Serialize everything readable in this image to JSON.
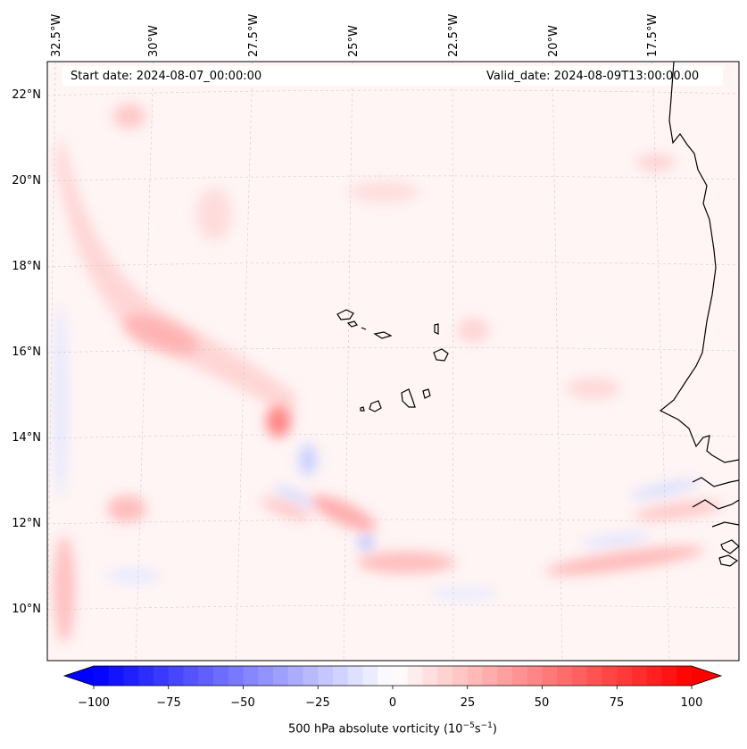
{
  "header": {
    "start_date": "Start date: 2024-08-07_00:00:00",
    "valid_date": "Valid_date: 2024-08-09T13:00:00.00"
  },
  "lon_labels": [
    "32.5°W",
    "30°W",
    "27.5°W",
    "25°W",
    "22.5°W",
    "20°W",
    "17.5°W"
  ],
  "lat_labels": [
    "22°N",
    "20°N",
    "18°N",
    "16°N",
    "14°N",
    "12°N",
    "10°N"
  ],
  "colorbar": {
    "ticks": [
      "−100",
      "−75",
      "−50",
      "−25",
      "0",
      "25",
      "50",
      "75",
      "100"
    ],
    "label_main": "500 hPa absolute vorticity (10",
    "label_exp1": "−5",
    "label_mid": "s",
    "label_exp2": "−1",
    "label_end": ")",
    "min": -100,
    "max": 100,
    "levels": 40,
    "extend": "both"
  },
  "colors": {
    "negative": "#0000ff",
    "positive": "#ff0000",
    "coast": "#000000",
    "grid": "#cccccc"
  }
}
